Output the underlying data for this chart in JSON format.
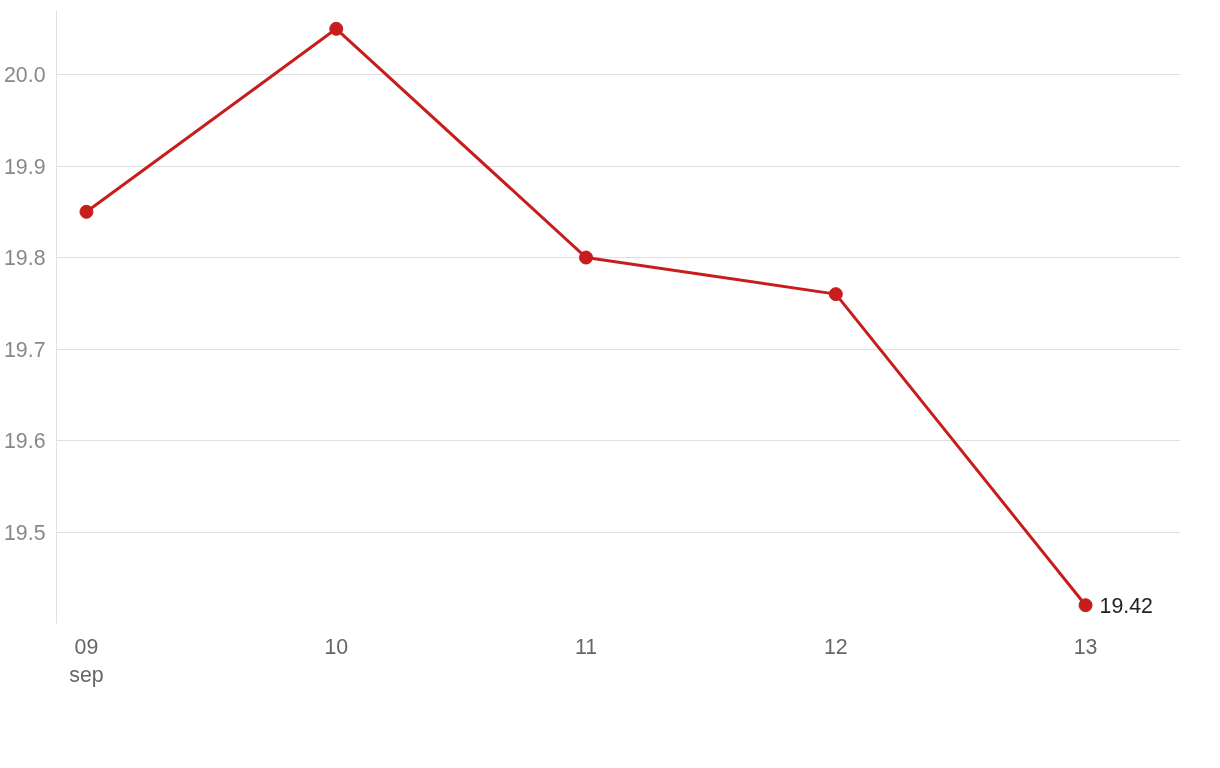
{
  "chart_data": {
    "type": "line",
    "categories": [
      "09\nsep",
      "10",
      "11",
      "12",
      "13"
    ],
    "series": [
      {
        "color": "#c71e1d",
        "values": [
          19.85,
          20.05,
          19.8,
          19.76,
          19.42
        ],
        "value_labels": [
          null,
          null,
          null,
          null,
          "19.42"
        ]
      }
    ],
    "ylim": [
      19.4,
      20.07
    ],
    "yticks": [
      19.5,
      19.6,
      19.7,
      19.8,
      19.9,
      {
        "value": 20.0,
        "label": "20.0"
      }
    ],
    "grid": "y",
    "marker": "circle",
    "line_style": "solid"
  }
}
